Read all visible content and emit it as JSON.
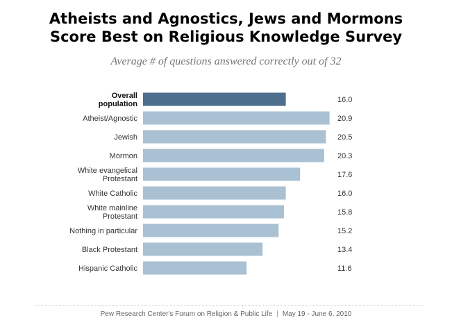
{
  "header": {
    "title_line1": "Atheists and Agnostics, Jews and Mormons",
    "title_line2": "Score Best on Religious Knowledge Survey",
    "subtitle": "Average # of questions answered correctly out of 32"
  },
  "footer": {
    "source": "Pew Research Center's Forum on Religion & Public Life",
    "separator": "|",
    "dates": "May 19 - June 6, 2010"
  },
  "colors": {
    "highlight_bar": "#4d6e8c",
    "bar": "#a9c1d3"
  },
  "chart_data": {
    "type": "bar",
    "orientation": "horizontal",
    "title": "Atheists and Agnostics, Jews and Mormons Score Best on Religious Knowledge Survey",
    "subtitle": "Average # of questions answered correctly out of 32",
    "xlim": [
      0,
      21
    ],
    "grid": false,
    "categories": [
      {
        "label_lines": [
          "Overall",
          "population"
        ],
        "value": 16.0,
        "display": "16.0",
        "highlight": true
      },
      {
        "label_lines": [
          "Atheist/Agnostic"
        ],
        "value": 20.9,
        "display": "20.9",
        "highlight": false
      },
      {
        "label_lines": [
          "Jewish"
        ],
        "value": 20.5,
        "display": "20.5",
        "highlight": false
      },
      {
        "label_lines": [
          "Mormon"
        ],
        "value": 20.3,
        "display": "20.3",
        "highlight": false
      },
      {
        "label_lines": [
          "White evangelical",
          "Protestant"
        ],
        "value": 17.6,
        "display": "17.6",
        "highlight": false
      },
      {
        "label_lines": [
          "White Catholic"
        ],
        "value": 16.0,
        "display": "16.0",
        "highlight": false
      },
      {
        "label_lines": [
          "White mainline",
          "Protestant"
        ],
        "value": 15.8,
        "display": "15.8",
        "highlight": false
      },
      {
        "label_lines": [
          "Nothing in particular"
        ],
        "value": 15.2,
        "display": "15.2",
        "highlight": false
      },
      {
        "label_lines": [
          "Black Protestant"
        ],
        "value": 13.4,
        "display": "13.4",
        "highlight": false
      },
      {
        "label_lines": [
          "Hispanic Catholic"
        ],
        "value": 11.6,
        "display": "11.6",
        "highlight": false
      }
    ]
  }
}
